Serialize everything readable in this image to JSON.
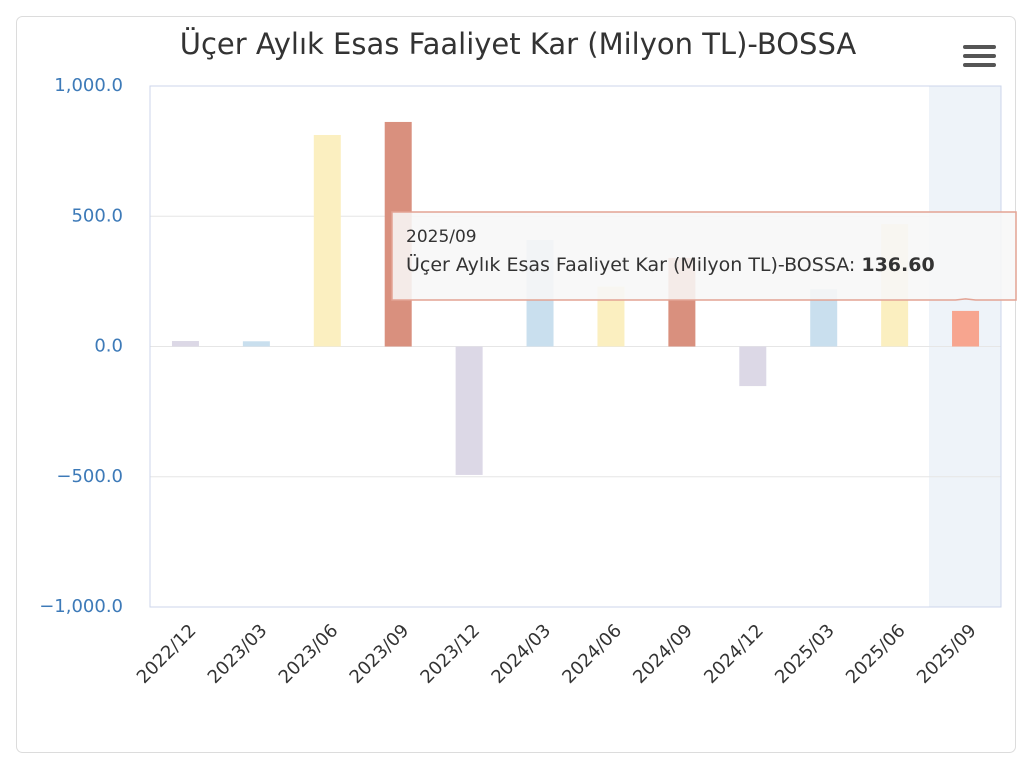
{
  "chart_data": {
    "type": "bar",
    "title": "Üçer Aylık Esas Faaliyet Kar (Milyon TL)-BOSSA",
    "categories": [
      "2022/12",
      "2023/03",
      "2023/06",
      "2023/09",
      "2023/12",
      "2024/03",
      "2024/06",
      "2024/09",
      "2024/12",
      "2025/03",
      "2025/06",
      "2025/09"
    ],
    "series": [
      {
        "name": "Üçer Aylık Esas Faaliyet Kar (Milyon TL)-BOSSA",
        "colors": [
          "#dcd8e6",
          "#c9dfee",
          "#fbefc0",
          "#d9907e",
          "#dcd8e6",
          "#c9dfee",
          "#fbefc0",
          "#d9907e",
          "#dcd8e6",
          "#c9dfee",
          "#fbefc0",
          "#f7a58f"
        ],
        "values": [
          21,
          20,
          812,
          862,
          -493,
          409,
          230,
          340,
          -152,
          220,
          470,
          136.6
        ],
        "value_labels": [
          null,
          null,
          null,
          null,
          null,
          null,
          null,
          null,
          null,
          null,
          null,
          "136.60"
        ]
      }
    ],
    "ylim": [
      -1000,
      1000
    ],
    "yticks": [
      {
        "value": -1000,
        "label": "−1,000.0"
      },
      {
        "value": -500,
        "label": "−500.0"
      },
      {
        "value": 0,
        "label": "0.0"
      },
      {
        "value": 500,
        "label": "500.0"
      },
      {
        "value": 1000,
        "label": "1,000.0"
      }
    ],
    "grid": true
  }
}
